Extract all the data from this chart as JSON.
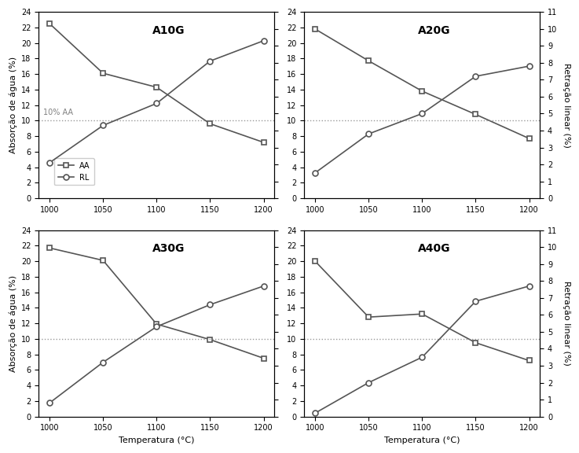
{
  "subplots": [
    {
      "title": "A10G",
      "temp": [
        1000,
        1050,
        1100,
        1150,
        1200
      ],
      "AA": [
        22.5,
        16.1,
        14.3,
        9.6,
        7.2
      ],
      "RL": [
        2.1,
        4.3,
        5.6,
        8.1,
        9.3
      ]
    },
    {
      "title": "A20G",
      "temp": [
        1000,
        1050,
        1100,
        1150,
        1200
      ],
      "AA": [
        21.8,
        17.7,
        13.8,
        10.8,
        7.7
      ],
      "RL": [
        1.5,
        3.8,
        5.0,
        7.2,
        7.8
      ]
    },
    {
      "title": "A30G",
      "temp": [
        1000,
        1050,
        1100,
        1150,
        1200
      ],
      "AA": [
        21.7,
        20.1,
        11.9,
        9.9,
        7.5
      ],
      "RL": [
        0.8,
        3.2,
        5.3,
        6.6,
        7.7
      ]
    },
    {
      "title": "A40G",
      "temp": [
        1000,
        1050,
        1100,
        1150,
        1200
      ],
      "AA": [
        20.0,
        12.8,
        13.2,
        9.5,
        7.2
      ],
      "RL": [
        0.2,
        2.0,
        3.5,
        6.8,
        7.7
      ]
    }
  ],
  "xlabel": "Temperatura (°C)",
  "ylabel_left": "Absorção de água (%)",
  "ylabel_right": "Retração linear (%)",
  "ylim_left": [
    0,
    24
  ],
  "ylim_right": [
    0,
    11
  ],
  "yticks_left": [
    0,
    2,
    4,
    6,
    8,
    10,
    12,
    14,
    16,
    18,
    20,
    22,
    24
  ],
  "yticks_right": [
    0,
    1,
    2,
    3,
    4,
    5,
    6,
    7,
    8,
    9,
    10,
    11
  ],
  "xticks": [
    1000,
    1050,
    1100,
    1150,
    1200
  ],
  "hline_y": 10,
  "hline_label": "10% AA",
  "line_color": "#555555",
  "marker_AA": "s",
  "marker_RL": "o",
  "legend_labels": [
    "AA",
    "RL"
  ],
  "show_legend_subplot": 0
}
